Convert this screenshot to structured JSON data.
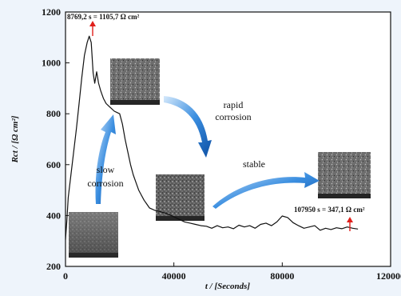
{
  "chart_data": {
    "type": "line",
    "xlabel": "t / [Seconds]",
    "ylabel": "Rct / [Ω cm²]",
    "xlim": [
      0,
      120000
    ],
    "ylim": [
      200,
      1200
    ],
    "x_ticks": [
      "0",
      "40000",
      "80000",
      "120000"
    ],
    "y_ticks": [
      "200",
      "400",
      "600",
      "800",
      "1000",
      "1200"
    ],
    "grid": false,
    "series": [
      {
        "x": [
          0,
          500,
          1000,
          2000,
          3000,
          4000,
          5000,
          6000,
          7000,
          8000,
          8769,
          9500,
          10200,
          10800,
          11500,
          12200,
          13000,
          14000,
          15000,
          16000,
          17000,
          18000,
          19000,
          20000,
          21000,
          22000,
          23000,
          24000,
          25000,
          26000,
          27000,
          28000,
          29000,
          30000,
          31000,
          32000,
          33000,
          34000,
          35000,
          36000,
          38000,
          40000,
          42000,
          44000,
          46000,
          48000,
          50000,
          52000,
          54000,
          56000,
          58000,
          60000,
          62000,
          64000,
          66000,
          68000,
          70000,
          72000,
          74000,
          76000,
          78000,
          80000,
          82000,
          84000,
          86000,
          88000,
          90000,
          92000,
          94000,
          96000,
          98000,
          100000,
          102000,
          104000,
          106000,
          107950
        ],
        "y": [
          305,
          380,
          470,
          560,
          650,
          740,
          840,
          940,
          1030,
          1080,
          1105,
          1080,
          960,
          920,
          965,
          920,
          890,
          860,
          840,
          830,
          820,
          810,
          805,
          800,
          760,
          700,
          650,
          600,
          560,
          530,
          500,
          480,
          460,
          445,
          430,
          425,
          420,
          418,
          415,
          412,
          405,
          395,
          385,
          375,
          370,
          365,
          360,
          358,
          350,
          360,
          352,
          355,
          348,
          362,
          355,
          360,
          350,
          365,
          370,
          360,
          375,
          398,
          392,
          372,
          360,
          350,
          355,
          360,
          342,
          350,
          345,
          352,
          348,
          355,
          350,
          347
        ]
      }
    ],
    "annotations": {
      "peak": "8769,2 s = 1105,7 Ω cm²",
      "end": "107950 s = 347,1 Ω cm²",
      "slow_1": "slow",
      "slow_2": "corrosion",
      "rapid_1": "rapid",
      "rapid_2": "corrosion",
      "stable": "stable"
    },
    "colors": {
      "line": "#111111",
      "arrow_blue": "#1e6fc8",
      "marker_red": "#e0201b"
    }
  }
}
